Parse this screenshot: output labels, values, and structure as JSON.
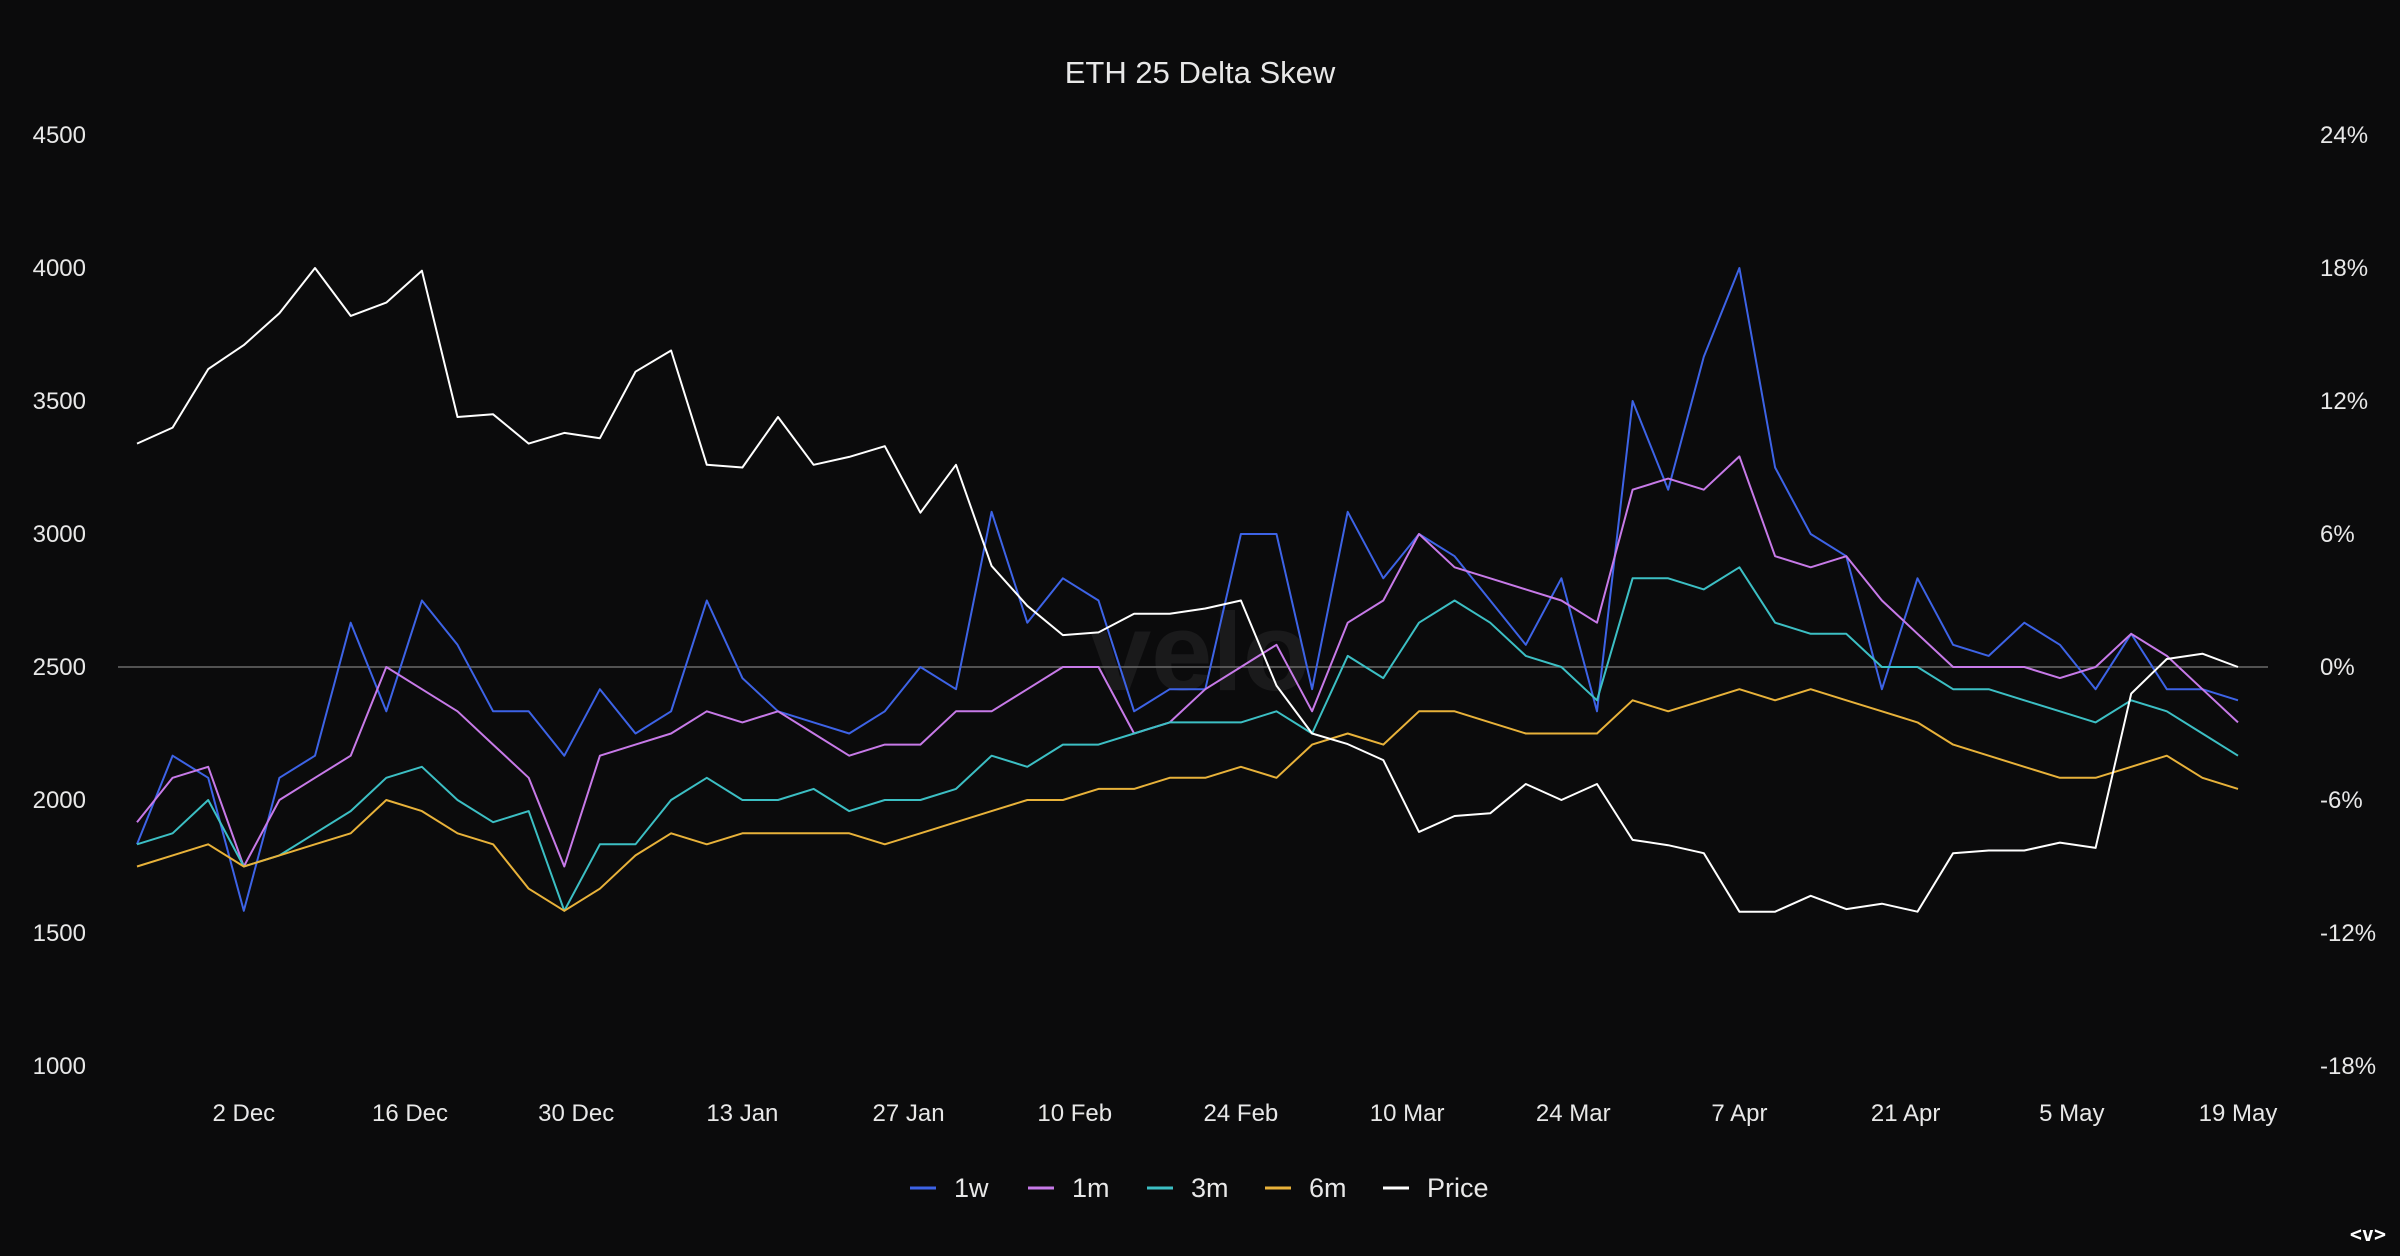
{
  "chart_data": {
    "type": "line",
    "title": "ETH 25 Delta Skew",
    "watermark": "velo",
    "left_axis": {
      "ylim": [
        1000,
        4500
      ],
      "ticks": [
        "1000",
        "1500",
        "2000",
        "2500",
        "3000",
        "3500",
        "4000",
        "4500"
      ]
    },
    "right_axis": {
      "ylim": [
        -18,
        24
      ],
      "unit": "%",
      "ticks": [
        "-18%",
        "-12%",
        "-6%",
        "0%",
        "6%",
        "12%",
        "18%",
        "24%"
      ]
    },
    "x_ticks": [
      "2 Dec",
      "16 Dec",
      "30 Dec",
      "13 Jan",
      "27 Jan",
      "10 Feb",
      "24 Feb",
      "10 Mar",
      "24 Mar",
      "7 Apr",
      "21 Apr",
      "5 May",
      "19 May"
    ],
    "reference_line": {
      "axis": "right",
      "value": 0
    },
    "grid": false,
    "legend_placement": "bottom",
    "x": [
      "23 Nov",
      "26 Nov",
      "29 Nov",
      "2 Dec",
      "5 Dec",
      "8 Dec",
      "11 Dec",
      "14 Dec",
      "17 Dec",
      "20 Dec",
      "23 Dec",
      "26 Dec",
      "29 Dec",
      "1 Jan",
      "4 Jan",
      "7 Jan",
      "10 Jan",
      "13 Jan",
      "16 Jan",
      "19 Jan",
      "22 Jan",
      "25 Jan",
      "28 Jan",
      "31 Jan",
      "3 Feb",
      "6 Feb",
      "9 Feb",
      "12 Feb",
      "15 Feb",
      "18 Feb",
      "21 Feb",
      "24 Feb",
      "27 Feb",
      "2 Mar",
      "5 Mar",
      "8 Mar",
      "11 Mar",
      "14 Mar",
      "17 Mar",
      "20 Mar",
      "23 Mar",
      "26 Mar",
      "29 Mar",
      "1 Apr",
      "4 Apr",
      "7 Apr",
      "10 Apr",
      "13 Apr",
      "16 Apr",
      "19 Apr",
      "22 Apr",
      "25 Apr",
      "28 Apr",
      "1 May",
      "4 May",
      "7 May",
      "10 May",
      "13 May",
      "16 May",
      "19 May"
    ],
    "series": [
      {
        "name": "1w",
        "axis": "right",
        "color": "#3d63e6",
        "values": [
          -8,
          -4,
          -5,
          -11,
          -5,
          -4,
          2,
          -2,
          3,
          1,
          -2,
          -2,
          -4,
          -1,
          -3,
          -2,
          3,
          -0.5,
          -2,
          -2.5,
          -3,
          -2,
          0,
          -1,
          7,
          2,
          4,
          3,
          -2,
          -1,
          -1,
          6,
          6,
          -1,
          7,
          4,
          6,
          5,
          3,
          1,
          4,
          -2,
          12,
          8,
          14,
          18,
          9,
          6,
          5,
          -1,
          4,
          1,
          0.5,
          2,
          1,
          -1,
          1.5,
          -1,
          -1,
          -1.5
        ]
      },
      {
        "name": "1m",
        "axis": "right",
        "color": "#c77ae8",
        "values": [
          -7,
          -5,
          -4.5,
          -9,
          -6,
          -5,
          -4,
          0,
          -1,
          -2,
          -3.5,
          -5,
          -9,
          -4,
          -3.5,
          -3,
          -2,
          -2.5,
          -2,
          -3,
          -4,
          -3.5,
          -3.5,
          -2,
          -2,
          -1,
          0,
          0,
          -3,
          -2.5,
          -1,
          0,
          1,
          -2,
          2,
          3,
          6,
          4.5,
          4,
          3.5,
          3,
          2,
          8,
          8.5,
          8,
          9.5,
          5,
          4.5,
          5,
          3,
          1.5,
          0,
          0,
          0,
          -0.5,
          0,
          1.5,
          0.5,
          -1,
          -2.5
        ]
      },
      {
        "name": "3m",
        "axis": "right",
        "color": "#3cbfc4",
        "values": [
          -8,
          -7.5,
          -6,
          -9,
          -8.5,
          -7.5,
          -6.5,
          -5,
          -4.5,
          -6,
          -7,
          -6.5,
          -11,
          -8,
          -8,
          -6,
          -5,
          -6,
          -6,
          -5.5,
          -6.5,
          -6,
          -6,
          -5.5,
          -4,
          -4.5,
          -3.5,
          -3.5,
          -3,
          -2.5,
          -2.5,
          -2.5,
          -2,
          -3,
          0.5,
          -0.5,
          2,
          3,
          2,
          0.5,
          0,
          -1.5,
          4,
          4,
          3.5,
          4.5,
          2,
          1.5,
          1.5,
          0,
          0,
          -1,
          -1,
          -1.5,
          -2,
          -2.5,
          -1.5,
          -2,
          -3,
          -4
        ]
      },
      {
        "name": "6m",
        "axis": "right",
        "color": "#e8b23a",
        "values": [
          -9,
          -8.5,
          -8,
          -9,
          -8.5,
          -8,
          -7.5,
          -6,
          -6.5,
          -7.5,
          -8,
          -10,
          -11,
          -10,
          -8.5,
          -7.5,
          -8,
          -7.5,
          -7.5,
          -7.5,
          -7.5,
          -8,
          -7.5,
          -7,
          -6.5,
          -6,
          -6,
          -5.5,
          -5.5,
          -5,
          -5,
          -4.5,
          -5,
          -3.5,
          -3,
          -3.5,
          -2,
          -2,
          -2.5,
          -3,
          -3,
          -3,
          -1.5,
          -2,
          -1.5,
          -1,
          -1.5,
          -1,
          -1.5,
          -2,
          -2.5,
          -3.5,
          -4,
          -4.5,
          -5,
          -5,
          -4.5,
          -4,
          -5,
          -5.5
        ]
      },
      {
        "name": "Price",
        "axis": "left",
        "color": "#ffffff",
        "values": [
          3340,
          3400,
          3620,
          3710,
          3830,
          4000,
          3820,
          3870,
          3990,
          3440,
          3450,
          3340,
          3380,
          3360,
          3610,
          3690,
          3260,
          3250,
          3440,
          3260,
          3290,
          3330,
          3080,
          3260,
          2880,
          2730,
          2620,
          2630,
          2700,
          2700,
          2720,
          2750,
          2430,
          2250,
          2210,
          2150,
          1880,
          1940,
          1950,
          2060,
          2000,
          2060,
          1850,
          1830,
          1800,
          1580,
          1580,
          1640,
          1590,
          1610,
          1580,
          1800,
          1810,
          1810,
          1840,
          1820,
          2400,
          2530,
          2550,
          2500
        ]
      }
    ]
  },
  "corner_logo": "<v>"
}
